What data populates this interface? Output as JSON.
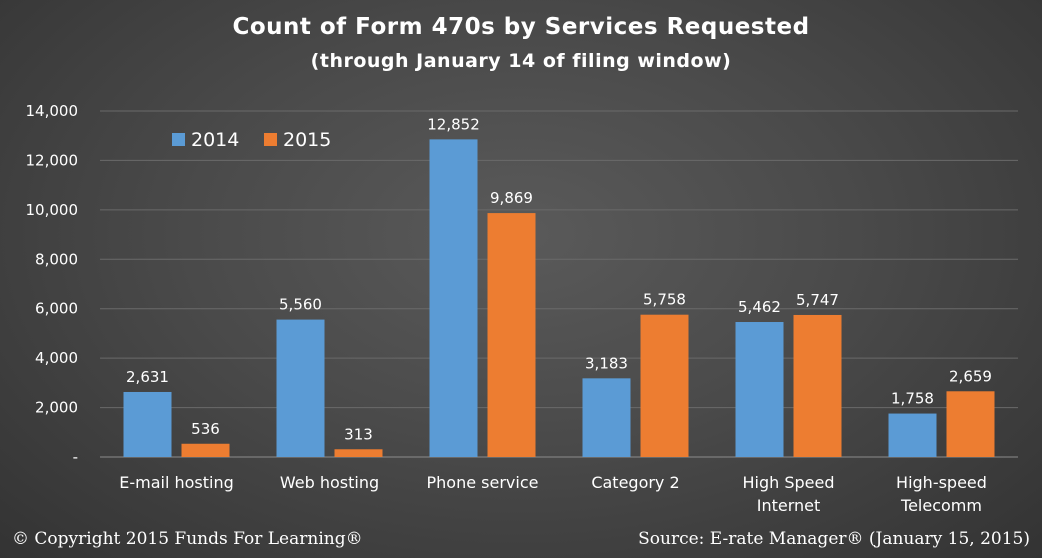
{
  "title": "Count of Form 470s by Services Requested",
  "subtitle": "(through January 14 of filing window)",
  "footer": {
    "copyright": "© Copyright 2015 Funds For Learning®",
    "source": "Source: E-rate Manager® (January 15, 2015)"
  },
  "colors": {
    "series_2014": "#5b9bd5",
    "series_2015": "#ed7d31",
    "text": "#ffffff",
    "gridline": "#6a6a6a"
  },
  "chart_data": {
    "type": "bar",
    "categories": [
      [
        "E-mail hosting"
      ],
      [
        "Web hosting"
      ],
      [
        "Phone service"
      ],
      [
        "Category 2"
      ],
      [
        "High Speed",
        "Internet"
      ],
      [
        "High-speed",
        "Telecomm"
      ]
    ],
    "series": [
      {
        "name": "2014",
        "values": [
          2631,
          5560,
          12852,
          3183,
          5462,
          1758
        ],
        "labels": [
          "2,631",
          "5,560",
          "12,852",
          "3,183",
          "5,462",
          "1,758"
        ]
      },
      {
        "name": "2015",
        "values": [
          536,
          313,
          9869,
          5758,
          5747,
          2659
        ],
        "labels": [
          "536",
          "313",
          "9,869",
          "5,758",
          "5,747",
          "2,659"
        ]
      }
    ],
    "yticks": [
      0,
      2000,
      4000,
      6000,
      8000,
      10000,
      12000,
      14000
    ],
    "ytick_labels": [
      "-",
      "2,000",
      "4,000",
      "6,000",
      "8,000",
      "10,000",
      "12,000",
      "14,000"
    ],
    "ylim": [
      0,
      14000
    ],
    "grid": true,
    "legend_position": "top-left"
  }
}
